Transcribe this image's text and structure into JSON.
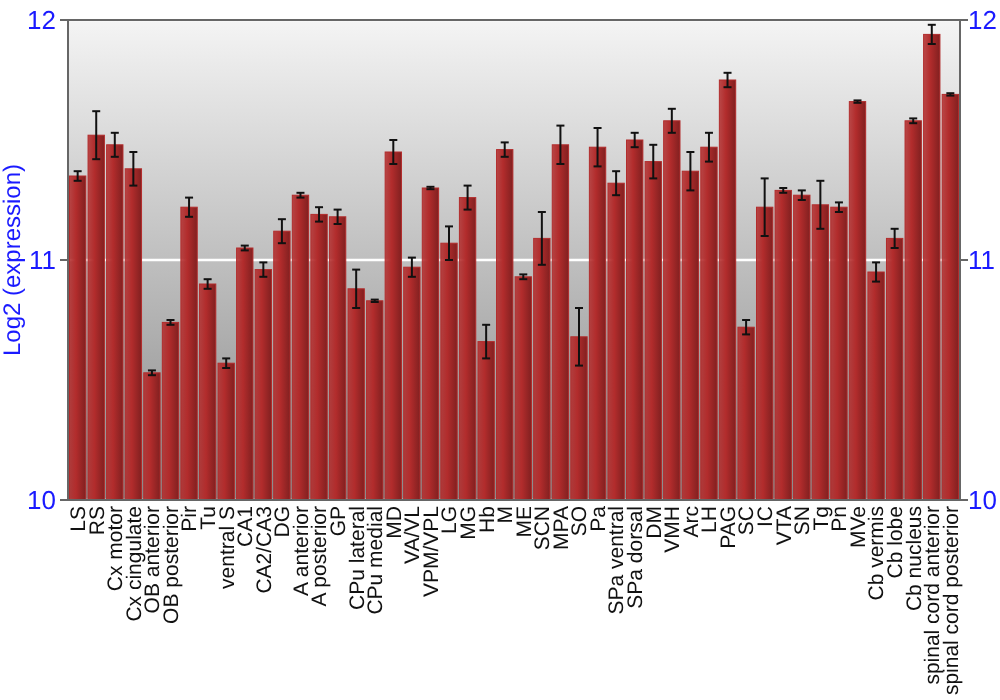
{
  "chart_data": {
    "type": "bar",
    "ylabel": "Log2 (expression)",
    "categories": [
      "LS",
      "RS",
      "Cx motor",
      "Cx cingulate",
      "OB anterior",
      "OB posterior",
      "Pir",
      "Tu",
      "ventral S",
      "CA1",
      "CA2/CA3",
      "DG",
      "A anterior",
      "A posterior",
      "GP",
      "CPu lateral",
      "CPu medial",
      "MD",
      "VA/VL",
      "VPM/VPL",
      "LG",
      "MG",
      "Hb",
      "M",
      "ME",
      "SCN",
      "MPA",
      "SO",
      "Pa",
      "SPa ventral",
      "SPa dorsal",
      "DM",
      "VMH",
      "Arc",
      "LH",
      "PAG",
      "SC",
      "IC",
      "VTA",
      "SN",
      "Tg",
      "Pn",
      "MVe",
      "Cb vermis",
      "Cb lobe",
      "Cb nucleus",
      "spinal cord anterior",
      "spinal cord posterior"
    ],
    "values": [
      11.35,
      11.52,
      11.48,
      11.38,
      10.53,
      10.74,
      11.22,
      10.9,
      10.57,
      11.05,
      10.96,
      11.12,
      11.27,
      11.19,
      11.18,
      10.88,
      10.83,
      11.45,
      10.97,
      11.3,
      11.07,
      11.26,
      10.66,
      11.46,
      10.93,
      11.09,
      11.48,
      10.68,
      11.47,
      11.32,
      11.5,
      11.41,
      11.58,
      11.37,
      11.47,
      11.75,
      10.72,
      11.22,
      11.29,
      11.27,
      11.23,
      11.22,
      11.66,
      10.95,
      11.09,
      11.58,
      11.94,
      11.69
    ],
    "errors": [
      0.02,
      0.1,
      0.05,
      0.07,
      0.01,
      0.01,
      0.04,
      0.02,
      0.02,
      0.01,
      0.03,
      0.05,
      0.01,
      0.03,
      0.03,
      0.08,
      0.005,
      0.05,
      0.04,
      0.005,
      0.07,
      0.05,
      0.07,
      0.03,
      0.01,
      0.11,
      0.08,
      0.12,
      0.08,
      0.05,
      0.03,
      0.07,
      0.05,
      0.08,
      0.06,
      0.03,
      0.03,
      0.12,
      0.01,
      0.02,
      0.1,
      0.02,
      0.005,
      0.04,
      0.04,
      0.01,
      0.04,
      0.005
    ],
    "color": "#b22c2c",
    "ylim": [
      10,
      12
    ],
    "yticks": [
      10,
      11,
      12
    ],
    "y2lim": [
      10,
      12
    ],
    "y2ticks": [
      10,
      11,
      12
    ],
    "grid": "y"
  }
}
